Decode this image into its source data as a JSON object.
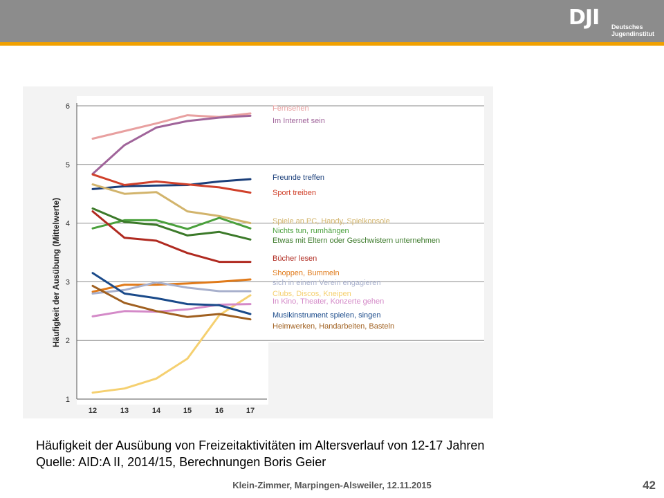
{
  "header": {
    "logo_mark": "DJI",
    "logo_line1": "Deutsches",
    "logo_line2": "Jugendinstitut",
    "accent_color": "#f0a000",
    "bar_color": "#8c8c8c"
  },
  "caption": {
    "line1": "Häufigkeit der Ausübung von Freizeitaktivitäten im Altersverlauf von 12-17 Jahren",
    "line2": "Quelle: AID:A II, 2014/15, Berechnungen Boris Geier"
  },
  "footer": {
    "text": "Klein-Zimmer, Marpingen-Alsweiler, 12.11.2015",
    "page_number": "42"
  },
  "chart_data": {
    "type": "line",
    "title": "",
    "xlabel": "",
    "ylabel": "Häufigkeit der Ausübung (Mittelwerte)",
    "x": [
      12,
      13,
      14,
      15,
      16,
      17
    ],
    "ylim": [
      1,
      6
    ],
    "yticks": [
      1,
      2,
      3,
      4,
      5,
      6
    ],
    "grid": "horizontal",
    "legend": "right, labels beside line ends",
    "series": [
      {
        "name": "Fernsehen",
        "color": "#e8a0a0",
        "values": [
          5.44,
          5.57,
          5.7,
          5.84,
          5.81,
          5.87
        ]
      },
      {
        "name": "Im Internet sein",
        "color": "#a0649a",
        "values": [
          4.84,
          5.33,
          5.63,
          5.74,
          5.8,
          5.83
        ]
      },
      {
        "name": "Freunde treffen",
        "color": "#1b3f7a",
        "values": [
          4.58,
          4.63,
          4.64,
          4.65,
          4.71,
          4.75
        ]
      },
      {
        "name": "Sport treiben",
        "color": "#d0402a",
        "values": [
          4.83,
          4.65,
          4.71,
          4.66,
          4.61,
          4.52
        ]
      },
      {
        "name": "Spiele an PC, Handy, Spielkonsole",
        "color": "#d2b46c",
        "values": [
          4.66,
          4.5,
          4.53,
          4.2,
          4.12,
          4.0
        ]
      },
      {
        "name": "Nichts tun, rumhängen",
        "color": "#4aa03c",
        "values": [
          3.91,
          4.05,
          4.05,
          3.9,
          4.09,
          3.91
        ]
      },
      {
        "name": "Etwas mit Eltern oder Geschwistern unternehmen",
        "color": "#3c7a2a",
        "values": [
          4.25,
          4.02,
          3.97,
          3.79,
          3.85,
          3.72
        ]
      },
      {
        "name": "Bücher lesen",
        "color": "#b02a20",
        "values": [
          4.2,
          3.75,
          3.7,
          3.49,
          3.34,
          3.34
        ]
      },
      {
        "name": "Shoppen, Bummeln",
        "color": "#e07a1a",
        "values": [
          2.83,
          2.95,
          2.95,
          2.97,
          3.0,
          3.04
        ]
      },
      {
        "name": "sich in einem Verein engagieren",
        "color": "#a8b0cc",
        "values": [
          2.8,
          2.86,
          2.99,
          2.9,
          2.84,
          2.84
        ]
      },
      {
        "name": "Clubs, Discos, Kneipen",
        "color": "#f5d070",
        "values": [
          1.11,
          1.18,
          1.35,
          1.69,
          2.43,
          2.77
        ]
      },
      {
        "name": "In Kino, Theater, Konzerte gehen",
        "color": "#d48ac8",
        "values": [
          2.41,
          2.5,
          2.49,
          2.53,
          2.61,
          2.62
        ]
      },
      {
        "name": "Musikinstrument spielen, singen",
        "color": "#1a4a8a",
        "values": [
          3.15,
          2.8,
          2.72,
          2.62,
          2.6,
          2.45
        ]
      },
      {
        "name": "Heimwerken, Handarbeiten, Basteln",
        "color": "#a06020",
        "values": [
          2.93,
          2.64,
          2.5,
          2.4,
          2.45,
          2.36
        ]
      }
    ]
  }
}
